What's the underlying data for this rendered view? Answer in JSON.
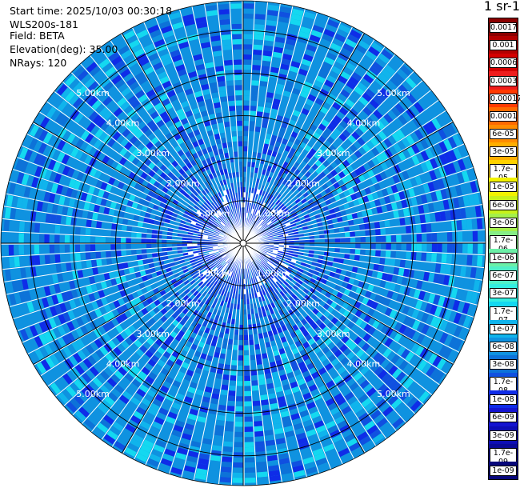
{
  "header": {
    "start_time": "Start time: 2025/10/03 00:30:18",
    "instrument": "WLS200s-181",
    "field": "Field: BETA",
    "elevation": "Elevation(deg): 35.00",
    "nrays": "NRays: 120"
  },
  "colorbar": {
    "unit_title": "m-1 sr-1",
    "labels": [
      "0.0017",
      "0.001",
      "0.0006",
      "0.0003",
      "0.00017",
      "0.0001",
      "6e-05",
      "3e-05",
      "1.7e-05",
      "1e-05",
      "6e-06",
      "3e-06",
      "1.7e-06",
      "1e-06",
      "6e-07",
      "3e-07",
      "1.7e-07",
      "1e-07",
      "6e-08",
      "3e-08",
      "1.7e-08",
      "1e-08",
      "6e-09",
      "3e-09",
      "1.7e-09",
      "1e-09"
    ],
    "colors": [
      "#8b0000",
      "#b30000",
      "#d40000",
      "#ee1c1c",
      "#ff3a00",
      "#ff6a00",
      "#ff8c00",
      "#ffae00",
      "#ffd200",
      "#f2f200",
      "#c8f21a",
      "#a4f04a",
      "#86ee86",
      "#6cf0a8",
      "#50f0c8",
      "#34eee0",
      "#14d8f0",
      "#10b4ec",
      "#0f92e0",
      "#0d72d8",
      "#1050e0",
      "#0f2ce8",
      "#1414d0",
      "#0d0db4",
      "#0a0a96",
      "#07077a"
    ]
  },
  "chart_data": {
    "type": "heatmap",
    "projection": "polar PPI",
    "field": "BETA",
    "elevation_deg": 35.0,
    "n_rays": 120,
    "range_rings_km": [
      1.0,
      2.0,
      3.0,
      4.0,
      5.0
    ],
    "ring_labels": [
      "1.00km",
      "2.00km",
      "3.00km",
      "4.00km",
      "5.00km"
    ],
    "max_range_km": 5.7,
    "value_range": [
      1e-09,
      0.0017
    ],
    "dominant_value": "6e-08",
    "near_range_value": "1e-08",
    "log_scale": true
  }
}
